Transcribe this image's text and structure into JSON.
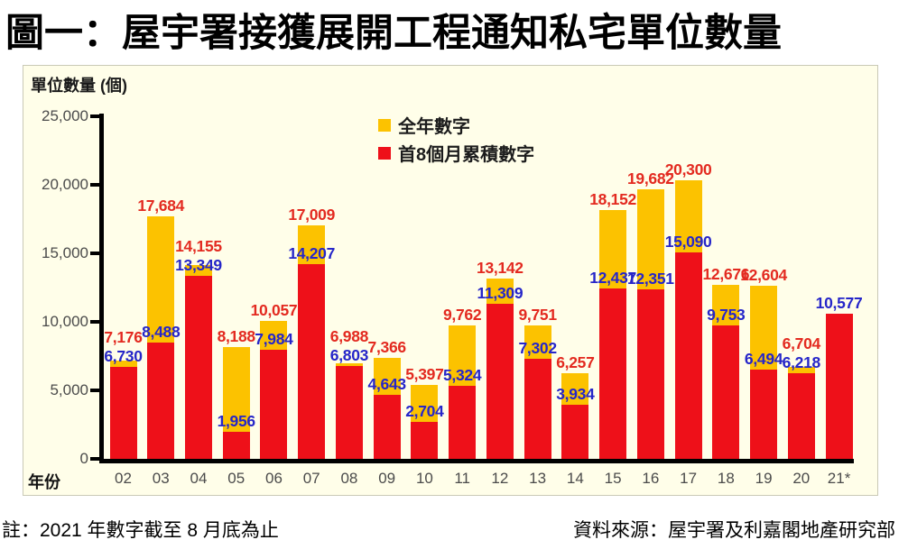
{
  "title": "圖一：屋宇署接獲展開工程通知私宅單位數量",
  "panel": {
    "y_axis_unit": "單位數量 (個)",
    "x_axis_title": "年份"
  },
  "footer": {
    "note": "註：2021 年數字截至 8 月底為止",
    "source": "資料來源：屋宇署及利嘉閣地產研究部"
  },
  "colors": {
    "panel_background": "#fffee9",
    "bar_full_year": "#fcc200",
    "bar_first8": "#ee1019",
    "label_full_year": "#e32a20",
    "label_first8": "#2626c9",
    "axis": "#000000",
    "axis_text": "#4b4b4b"
  },
  "chart_data": {
    "type": "bar",
    "subtype": "overlayed",
    "title": "圖一：屋宇署接獲展開工程通知私宅單位數量",
    "xlabel": "年份",
    "ylabel": "單位數量 (個)",
    "ylim": [
      0,
      25000
    ],
    "yticks": [
      0,
      5000,
      10000,
      15000,
      20000,
      25000
    ],
    "ytick_labels": [
      "0",
      "5,000",
      "10,000",
      "15,000",
      "20,000",
      "25,000"
    ],
    "grid": false,
    "legend_position": "top-center",
    "categories": [
      "02",
      "03",
      "04",
      "05",
      "06",
      "07",
      "08",
      "09",
      "10",
      "11",
      "12",
      "13",
      "14",
      "15",
      "16",
      "17",
      "18",
      "19",
      "20",
      "21*"
    ],
    "series": [
      {
        "name": "全年數字",
        "color": "#fcc200",
        "label_color": "#e32a20",
        "values": [
          7176,
          17684,
          14155,
          8188,
          10057,
          17009,
          6988,
          7366,
          5397,
          9762,
          13142,
          9751,
          6257,
          18152,
          19682,
          20300,
          12676,
          12604,
          6704,
          null
        ]
      },
      {
        "name": "首8個月累積數字",
        "color": "#ee1019",
        "label_color": "#2626c9",
        "values": [
          6730,
          8488,
          13349,
          1956,
          7984,
          14207,
          6803,
          4643,
          2704,
          5324,
          11309,
          7302,
          3934,
          12437,
          12351,
          15090,
          9753,
          6494,
          6218,
          10577
        ]
      }
    ]
  }
}
